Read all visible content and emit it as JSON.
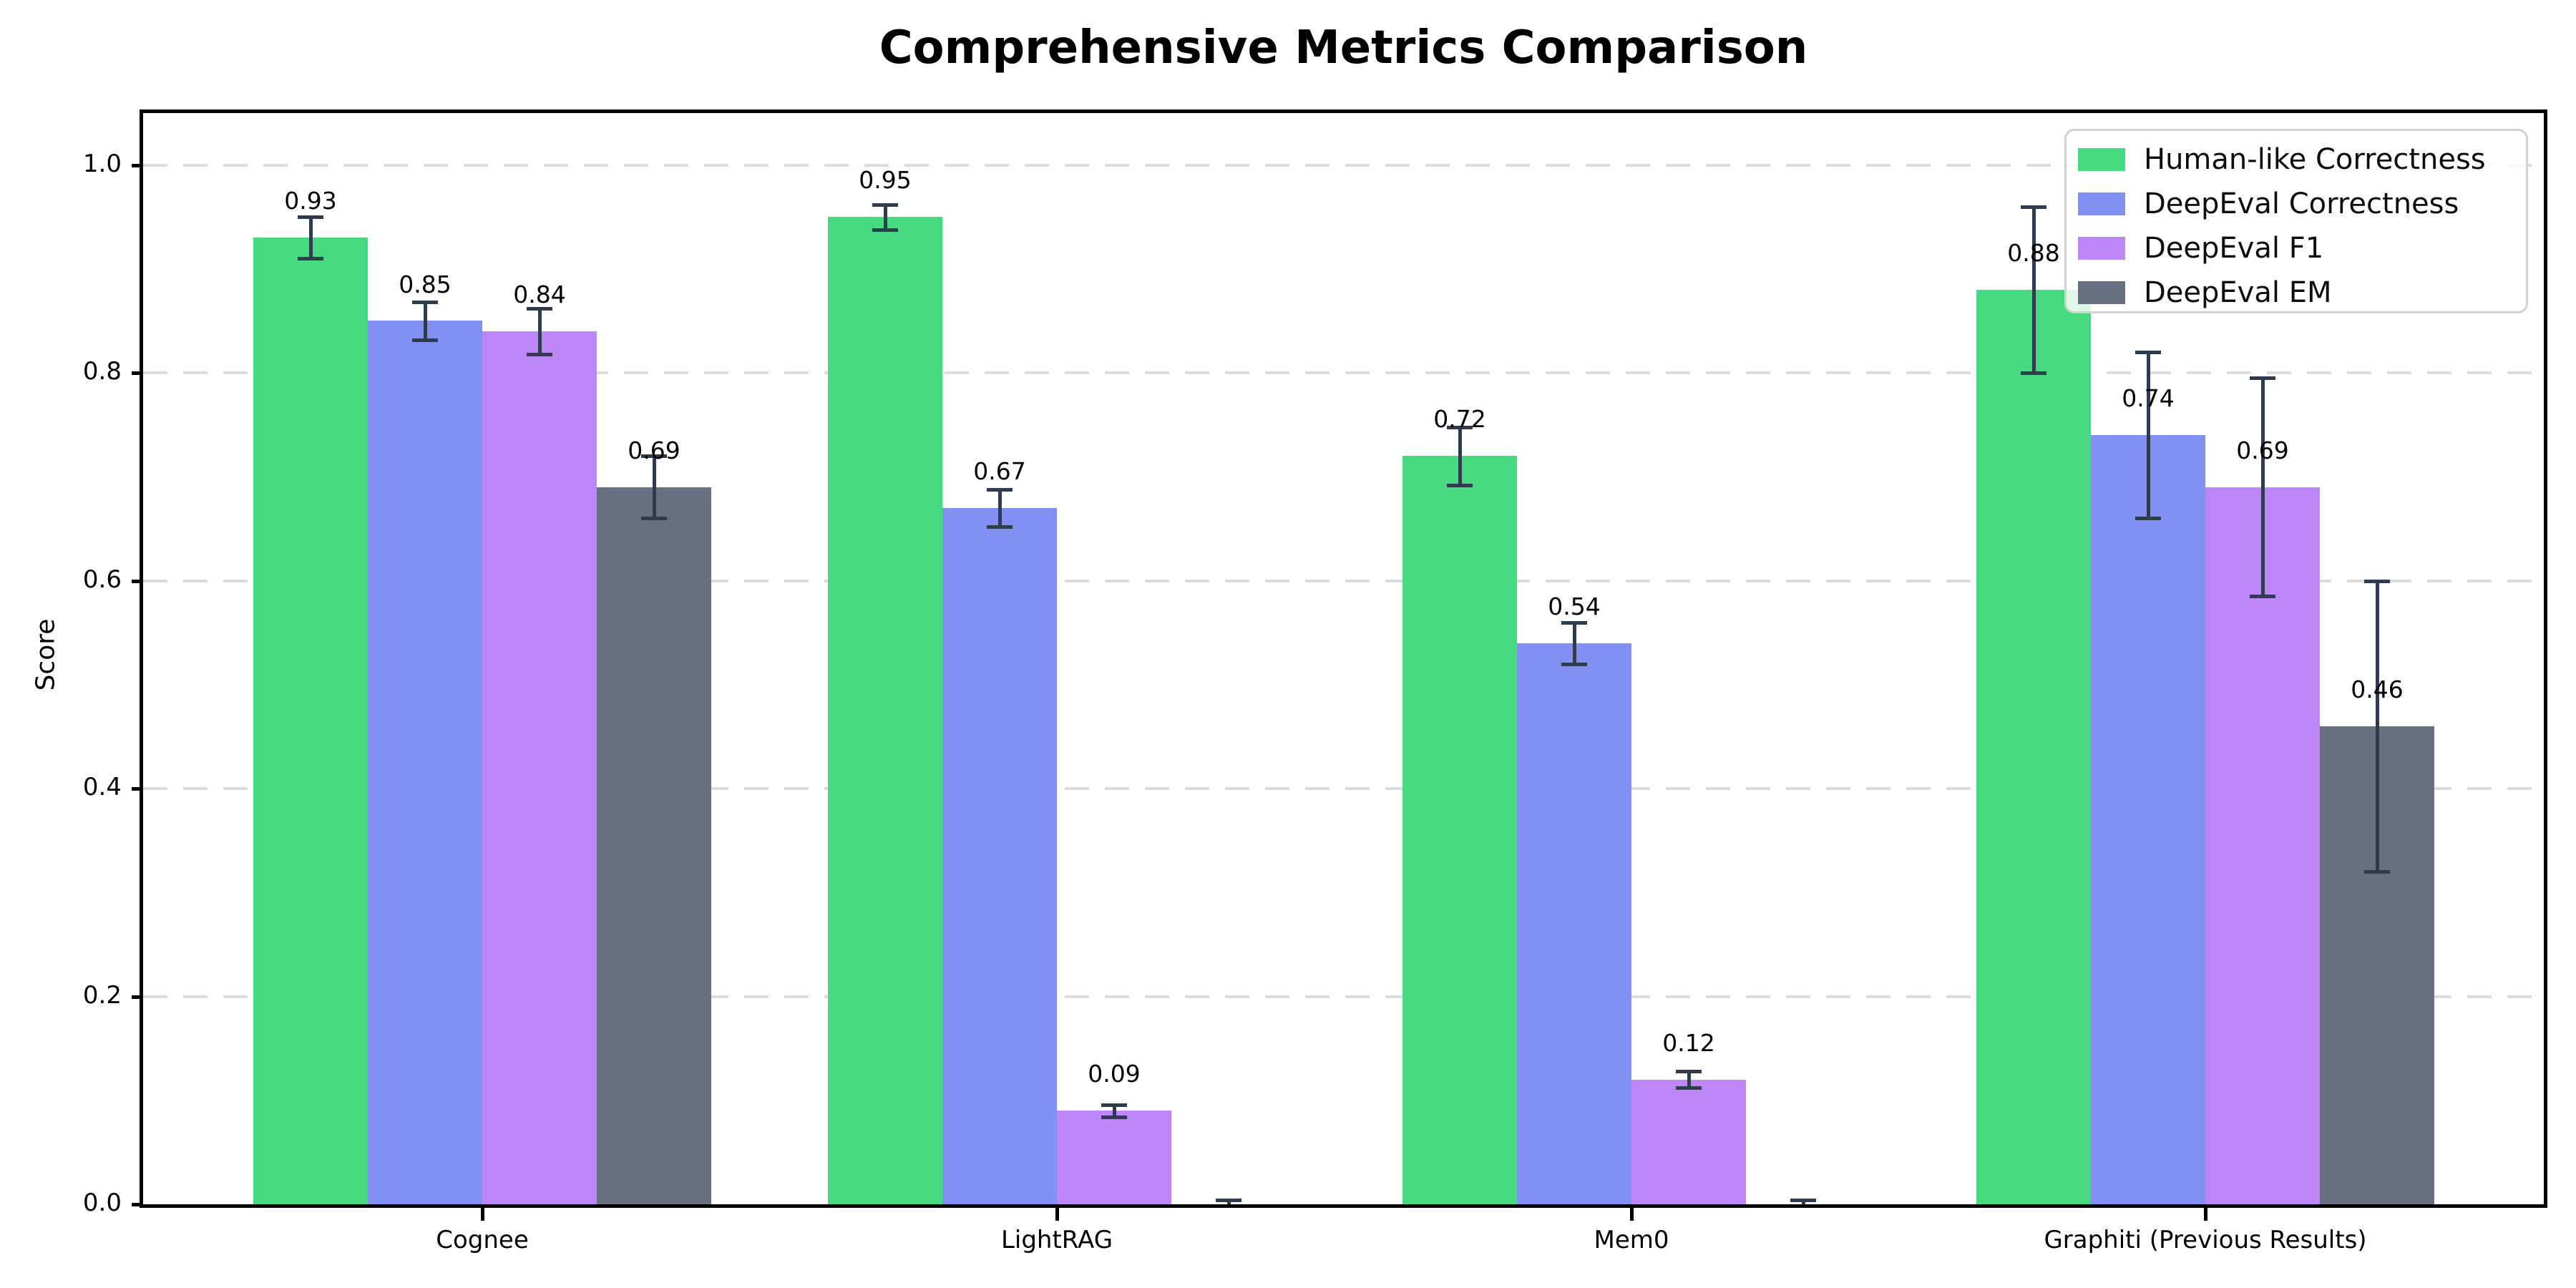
{
  "title": "Comprehensive Metrics Comparison",
  "chart_data": {
    "type": "bar",
    "title": "Comprehensive Metrics Comparison",
    "ylabel": "Score",
    "xlabel": "",
    "ylim": [
      0,
      1.05
    ],
    "yticks": [
      "0.0",
      "0.2",
      "0.4",
      "0.6",
      "0.8",
      "1.0"
    ],
    "grid": "horizontal dashed lines at y ticks",
    "legend_position": "upper right",
    "categories": [
      "Cognee",
      "LightRAG",
      "Mem0",
      "Graphiti (Previous Results)"
    ],
    "series": [
      {
        "name": "Human-like Correctness",
        "color": "#47d97f",
        "values": [
          0.93,
          0.95,
          0.72,
          0.88
        ],
        "errors": [
          0.02,
          0.012,
          0.028,
          0.08
        ],
        "labels": [
          "0.93",
          "0.95",
          "0.72",
          "0.88"
        ]
      },
      {
        "name": "DeepEval Correctness",
        "color": "#8290f3",
        "values": [
          0.85,
          0.67,
          0.54,
          0.74
        ],
        "errors": [
          0.018,
          0.018,
          0.02,
          0.08
        ],
        "labels": [
          "0.85",
          "0.67",
          "0.54",
          "0.74"
        ]
      },
      {
        "name": "DeepEval F1",
        "color": "#bd87f8",
        "values": [
          0.84,
          0.09,
          0.12,
          0.69
        ],
        "errors": [
          0.022,
          0.006,
          0.008,
          0.105
        ],
        "labels": [
          "0.84",
          "0.09",
          "0.12",
          "0.69"
        ]
      },
      {
        "name": "DeepEval EM",
        "color": "#687180",
        "values": [
          0.69,
          0.0,
          0.0,
          0.46
        ],
        "errors": [
          0.03,
          0.004,
          0.004,
          0.14
        ],
        "labels": [
          "0.69",
          "",
          "",
          "0.46"
        ]
      }
    ]
  },
  "colors": {
    "error_bar": "#2f3c4e",
    "grid": "#dcdcdc",
    "axis": "#000000",
    "legend_border": "#d2d2d2"
  }
}
